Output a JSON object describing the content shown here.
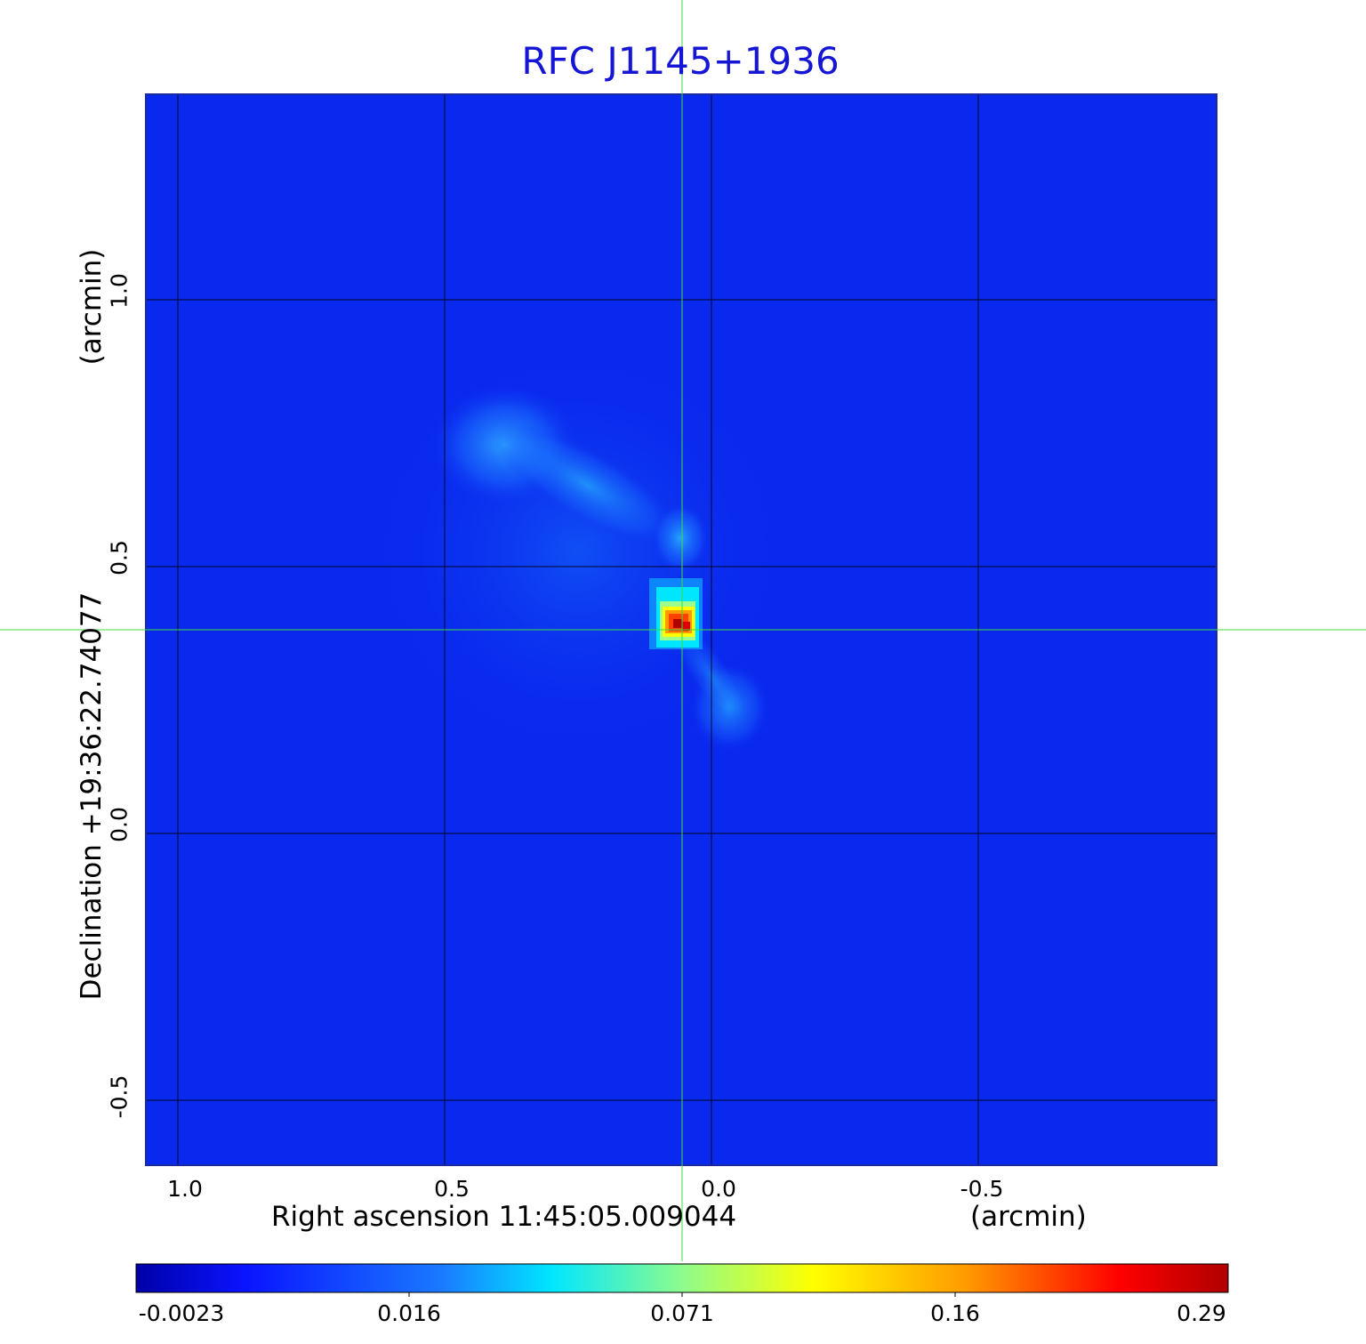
{
  "title": "RFC J1145+1936",
  "x_axis": {
    "label": "Right ascension  11:45:05.009044",
    "unit": "(arcmin)",
    "ticks": [
      "1.0",
      "0.5",
      "0.0",
      "-0.5"
    ]
  },
  "y_axis": {
    "label": "Declination  +19:36:22.74077",
    "unit": "(arcmin)",
    "ticks": [
      "1.0",
      "0.5",
      "0.0",
      "-0.5"
    ]
  },
  "colorbar": {
    "colormap": "jet",
    "tick_labels": [
      "-0.0023",
      "0.016",
      "0.071",
      "0.16",
      "0.29"
    ]
  },
  "colors": {
    "title": "#1515d6",
    "crosshair": "#3dde3d",
    "grid": "#000000",
    "background_map": "#0a2cf2",
    "peak": "#b00000"
  },
  "image_features": {
    "description_source": "radio map",
    "peak_value": 0.29,
    "noise_floor": -0.0023
  }
}
